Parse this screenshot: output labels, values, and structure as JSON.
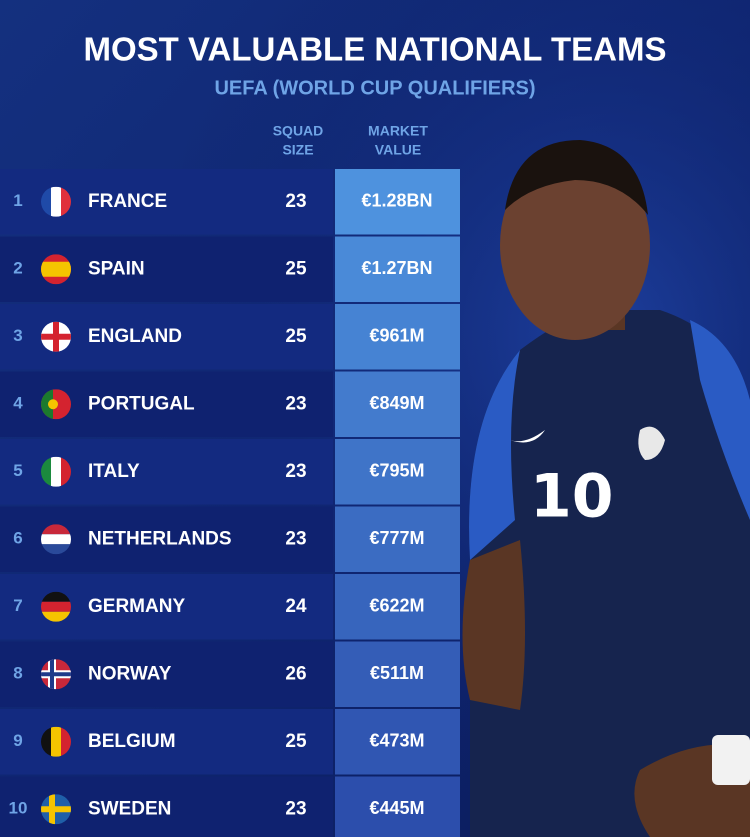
{
  "header": {
    "title": "MOST VALUABLE NATIONAL TEAMS",
    "subtitle": "UEFA (WORLD CUP QUALIFIERS)"
  },
  "table": {
    "columns": [
      [
        "SQUAD",
        "SIZE"
      ],
      [
        "MARKET",
        "VALUE"
      ]
    ],
    "rows": [
      [
        1,
        "FRANCE",
        23,
        "€1.28BN"
      ],
      [
        2,
        "SPAIN",
        25,
        "€1.27BN"
      ],
      [
        3,
        "ENGLAND",
        25,
        "€961M"
      ],
      [
        4,
        "PORTUGAL",
        23,
        "€849M"
      ],
      [
        5,
        "ITALY",
        23,
        "€795M"
      ],
      [
        6,
        "NETHERLANDS",
        23,
        "€777M"
      ],
      [
        7,
        "GERMANY",
        24,
        "€622M"
      ],
      [
        8,
        "NORWAY",
        26,
        "€511M"
      ],
      [
        9,
        "BELGIUM",
        25,
        "€473M"
      ],
      [
        10,
        "SWEDEN",
        23,
        "€445M"
      ]
    ]
  }
}
